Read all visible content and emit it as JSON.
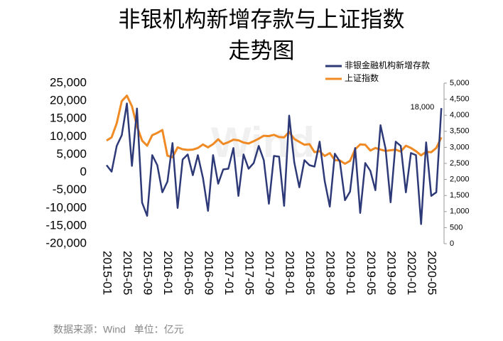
{
  "chart_data": {
    "type": "line",
    "title": [
      "非银机构新增存款与上证指数",
      "走势图"
    ],
    "watermark": "Wind",
    "source": "数据来源：Wind   单位：亿元",
    "categories": [
      "2015-01",
      null,
      null,
      null,
      "2015-05",
      null,
      null,
      null,
      "2015-09",
      null,
      null,
      null,
      "2016-01",
      null,
      null,
      null,
      "2016-05",
      null,
      null,
      null,
      "2016-09",
      null,
      null,
      null,
      "2017-01",
      null,
      null,
      null,
      "2017-05",
      null,
      null,
      null,
      "2017-09",
      null,
      null,
      null,
      "2018-01",
      null,
      null,
      null,
      "2018-05",
      null,
      null,
      null,
      "2018-09",
      null,
      null,
      null,
      "2019-01",
      null,
      null,
      null,
      "2019-05",
      null,
      null,
      null,
      "2019-09",
      null,
      null,
      null,
      "2020-01",
      null,
      null,
      null,
      "2020-05",
      null,
      null
    ],
    "series": [
      {
        "name": "非银金融机构新增存款",
        "color": "#2e3a78",
        "axis": "y",
        "values": [
          2000,
          200,
          7400,
          10400,
          19300,
          1800,
          17900,
          -8500,
          -12200,
          4800,
          2000,
          -5600,
          -2600,
          8200,
          -10000,
          3600,
          5000,
          -800,
          4800,
          -1600,
          -10800,
          4800,
          -3200,
          800,
          1000,
          6800,
          -6600,
          5000,
          1000,
          2600,
          7400,
          3400,
          -8800,
          4600,
          4400,
          -9400,
          15900,
          2800,
          -4200,
          3400,
          2000,
          1600,
          8600,
          -2400,
          -9600,
          5200,
          3000,
          -7800,
          -5400,
          6800,
          -11400,
          2600,
          400,
          -5000,
          13200,
          6600,
          -8400,
          8600,
          7400,
          -5600,
          5400,
          4800,
          -14500,
          8400,
          -6600,
          -5600,
          18000
        ],
        "value_labels": [
          null,
          null,
          null,
          null,
          null,
          null,
          null,
          null,
          null,
          null,
          null,
          null,
          null,
          null,
          null,
          null,
          null,
          null,
          null,
          null,
          null,
          null,
          null,
          null,
          null,
          null,
          null,
          null,
          null,
          null,
          null,
          null,
          null,
          null,
          null,
          null,
          null,
          null,
          null,
          null,
          null,
          null,
          null,
          null,
          null,
          null,
          null,
          null,
          null,
          null,
          null,
          null,
          null,
          null,
          null,
          null,
          null,
          null,
          null,
          null,
          null,
          null,
          null,
          null,
          null,
          null,
          "18,000"
        ]
      },
      {
        "name": "上证指数",
        "color": "#f08a24",
        "axis": "y2",
        "values": [
          3210,
          3310,
          3750,
          4440,
          4610,
          4280,
          3660,
          3210,
          3050,
          3380,
          3450,
          3540,
          2740,
          2690,
          3000,
          2940,
          2920,
          2930,
          2980,
          3090,
          3000,
          3100,
          3250,
          3100,
          3160,
          3240,
          3220,
          3150,
          3120,
          3190,
          3270,
          3360,
          3350,
          3390,
          3320,
          3310,
          3480,
          3260,
          3170,
          3080,
          3100,
          2850,
          2880,
          2730,
          2820,
          2600,
          2590,
          2490,
          2580,
          2940,
          3090,
          3080,
          2900,
          2980,
          2930,
          2890,
          2910,
          2930,
          2870,
          3050,
          2980,
          2880,
          2750,
          2860,
          2850,
          2980,
          3310
        ]
      }
    ],
    "ylim": [
      -20000,
      25000
    ],
    "yticks": [
      {
        "value": -20000,
        "label": "-20,000"
      },
      {
        "value": -15000,
        "label": "-15,000"
      },
      {
        "value": -10000,
        "label": "-10,000"
      },
      {
        "value": -5000,
        "label": "-5,000"
      },
      0,
      {
        "value": 5000,
        "label": "5,000"
      },
      {
        "value": 10000,
        "label": "10,000"
      },
      {
        "value": 15000,
        "label": "15,000"
      },
      {
        "value": 20000,
        "label": "20,000"
      },
      {
        "value": 25000,
        "label": "25,000"
      }
    ],
    "y2lim": [
      0,
      5000
    ],
    "y2ticks": [
      0,
      500,
      {
        "value": 1000,
        "label": "1,000"
      },
      {
        "value": 1500,
        "label": "1,500"
      },
      {
        "value": 2000,
        "label": "2,000"
      },
      {
        "value": 2500,
        "label": "2,500"
      },
      {
        "value": 3000,
        "label": "3,000"
      },
      {
        "value": 3500,
        "label": "3,500"
      },
      {
        "value": 4000,
        "label": "4,000"
      },
      {
        "value": 4500,
        "label": "4,500"
      },
      {
        "value": 5000,
        "label": "5,000"
      }
    ],
    "legend": "top-right",
    "grid": false
  }
}
